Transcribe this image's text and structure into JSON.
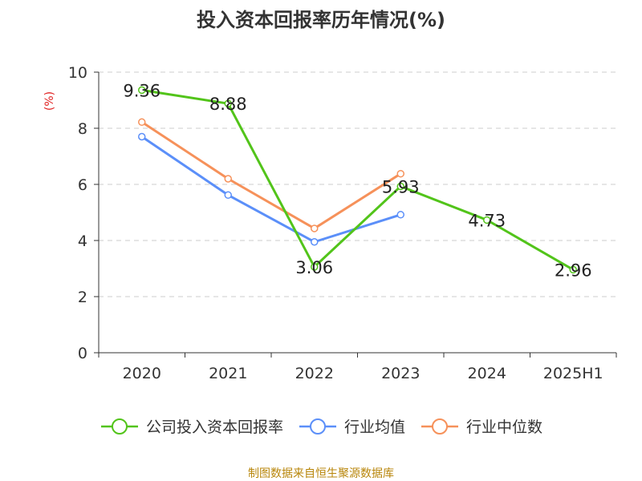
{
  "title": "投入资本回报率历年情况(%)",
  "source": "制图数据来自恒生聚源数据库",
  "chart_data": {
    "type": "line",
    "title": "投入资本回报率历年情况(%)",
    "ylabel": "(%)",
    "xlabel": "",
    "categories": [
      "2020",
      "2021",
      "2022",
      "2023",
      "2024",
      "2025H1"
    ],
    "ylim": [
      0,
      10
    ],
    "yticks": [
      0,
      2,
      4,
      6,
      8,
      10
    ],
    "grid": true,
    "legend_position": "bottom",
    "series": [
      {
        "name": "公司投入资本回报率",
        "color": "#52c41a",
        "values": [
          9.36,
          8.88,
          3.06,
          5.93,
          4.73,
          2.96
        ],
        "labels": [
          "9.36",
          "8.88",
          "3.06",
          "5.93",
          "4.73",
          "2.96"
        ]
      },
      {
        "name": "行业均值",
        "color": "#5b8ff9",
        "values": [
          7.7,
          5.62,
          3.95,
          4.92,
          null,
          null
        ]
      },
      {
        "name": "行业中位数",
        "color": "#f6915a",
        "values": [
          8.22,
          6.2,
          4.43,
          6.38,
          null,
          null
        ]
      }
    ]
  }
}
